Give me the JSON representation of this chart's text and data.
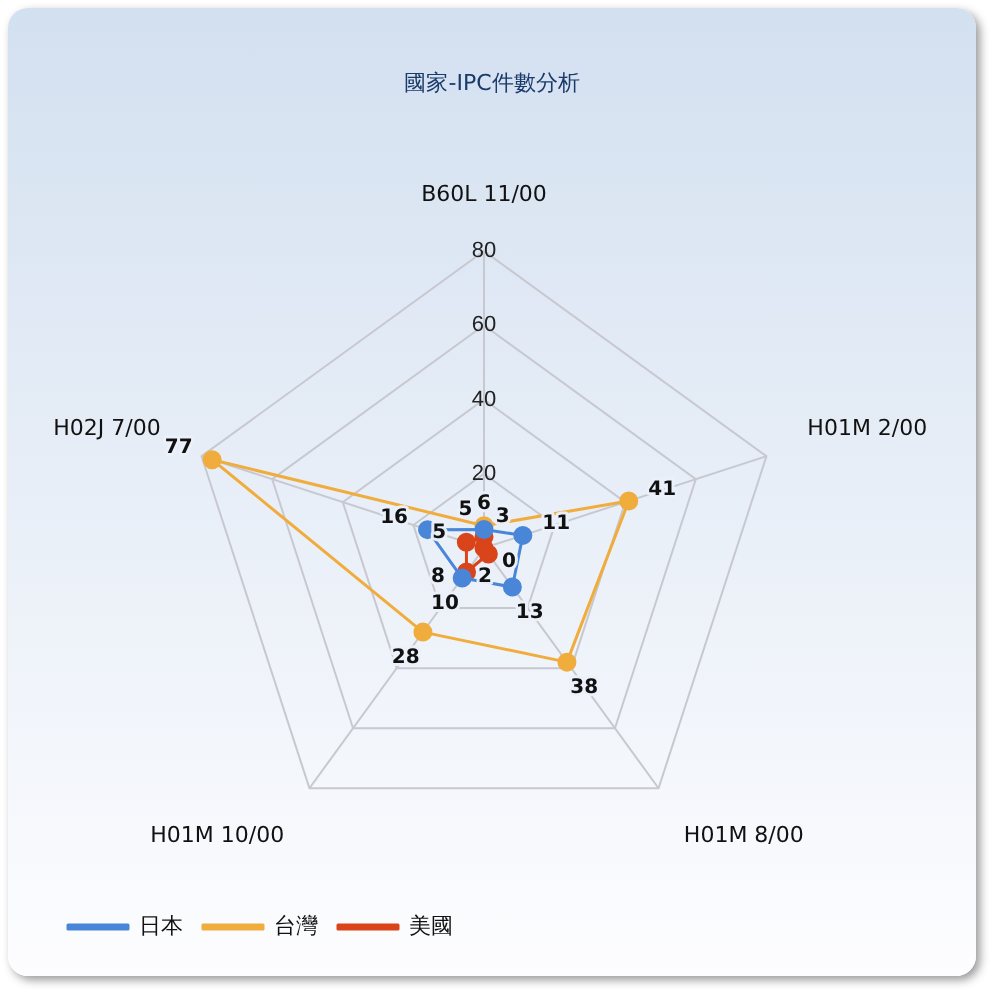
{
  "chart_data": {
    "type": "radar",
    "title": "國家-IPC件數分析",
    "categories": [
      "B60L 11/00",
      "H01M 2/00",
      "H01M 8/00",
      "H01M 10/00",
      "H02J 7/00"
    ],
    "series": [
      {
        "name": "日本",
        "color": "#4a86d8",
        "values": [
          5,
          11,
          13,
          10,
          16
        ]
      },
      {
        "name": "台灣",
        "color": "#f0ac3c",
        "values": [
          6,
          41,
          38,
          28,
          77
        ]
      },
      {
        "name": "美國",
        "color": "#d9441a",
        "values": [
          3,
          0,
          2,
          8,
          5
        ]
      }
    ],
    "ylim": [
      0,
      80
    ],
    "yticks": [
      20,
      40,
      60,
      80
    ],
    "grid": true,
    "legend": "bottom left",
    "marker": "circle",
    "data_labels": true
  }
}
